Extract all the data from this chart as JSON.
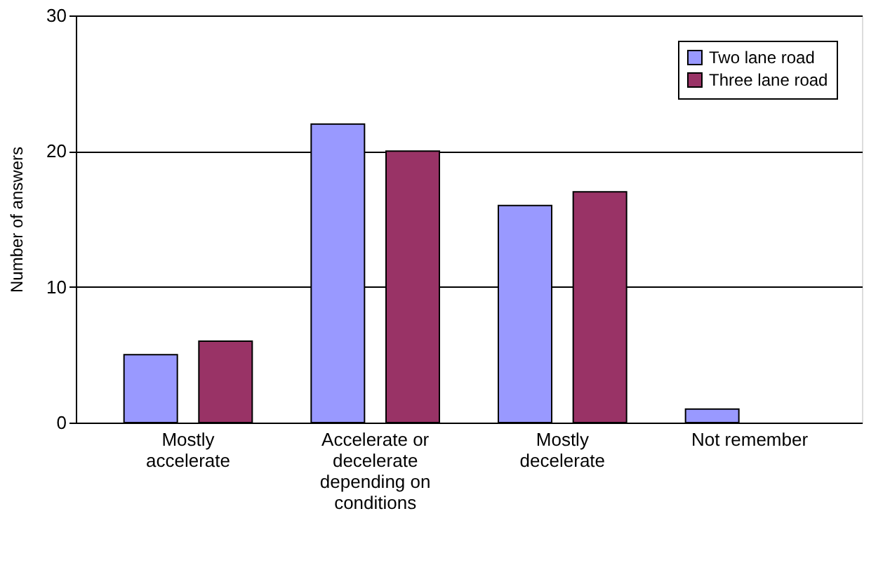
{
  "chart_data": {
    "type": "bar",
    "ylabel": "Number of answers",
    "categories": [
      "Mostly accelerate",
      "Accelerate or decelerate depending on conditions",
      "Mostly decelerate",
      "Not remember"
    ],
    "series": [
      {
        "name": "Two lane road",
        "color": "#9999ff",
        "values": [
          5,
          22,
          16,
          1
        ]
      },
      {
        "name": "Three lane road",
        "color": "#993366",
        "values": [
          6,
          20,
          17,
          0
        ]
      }
    ],
    "ylim": [
      0,
      30
    ],
    "yticks": [
      0,
      10,
      20,
      30
    ],
    "grid": "y",
    "legend": "top right"
  }
}
